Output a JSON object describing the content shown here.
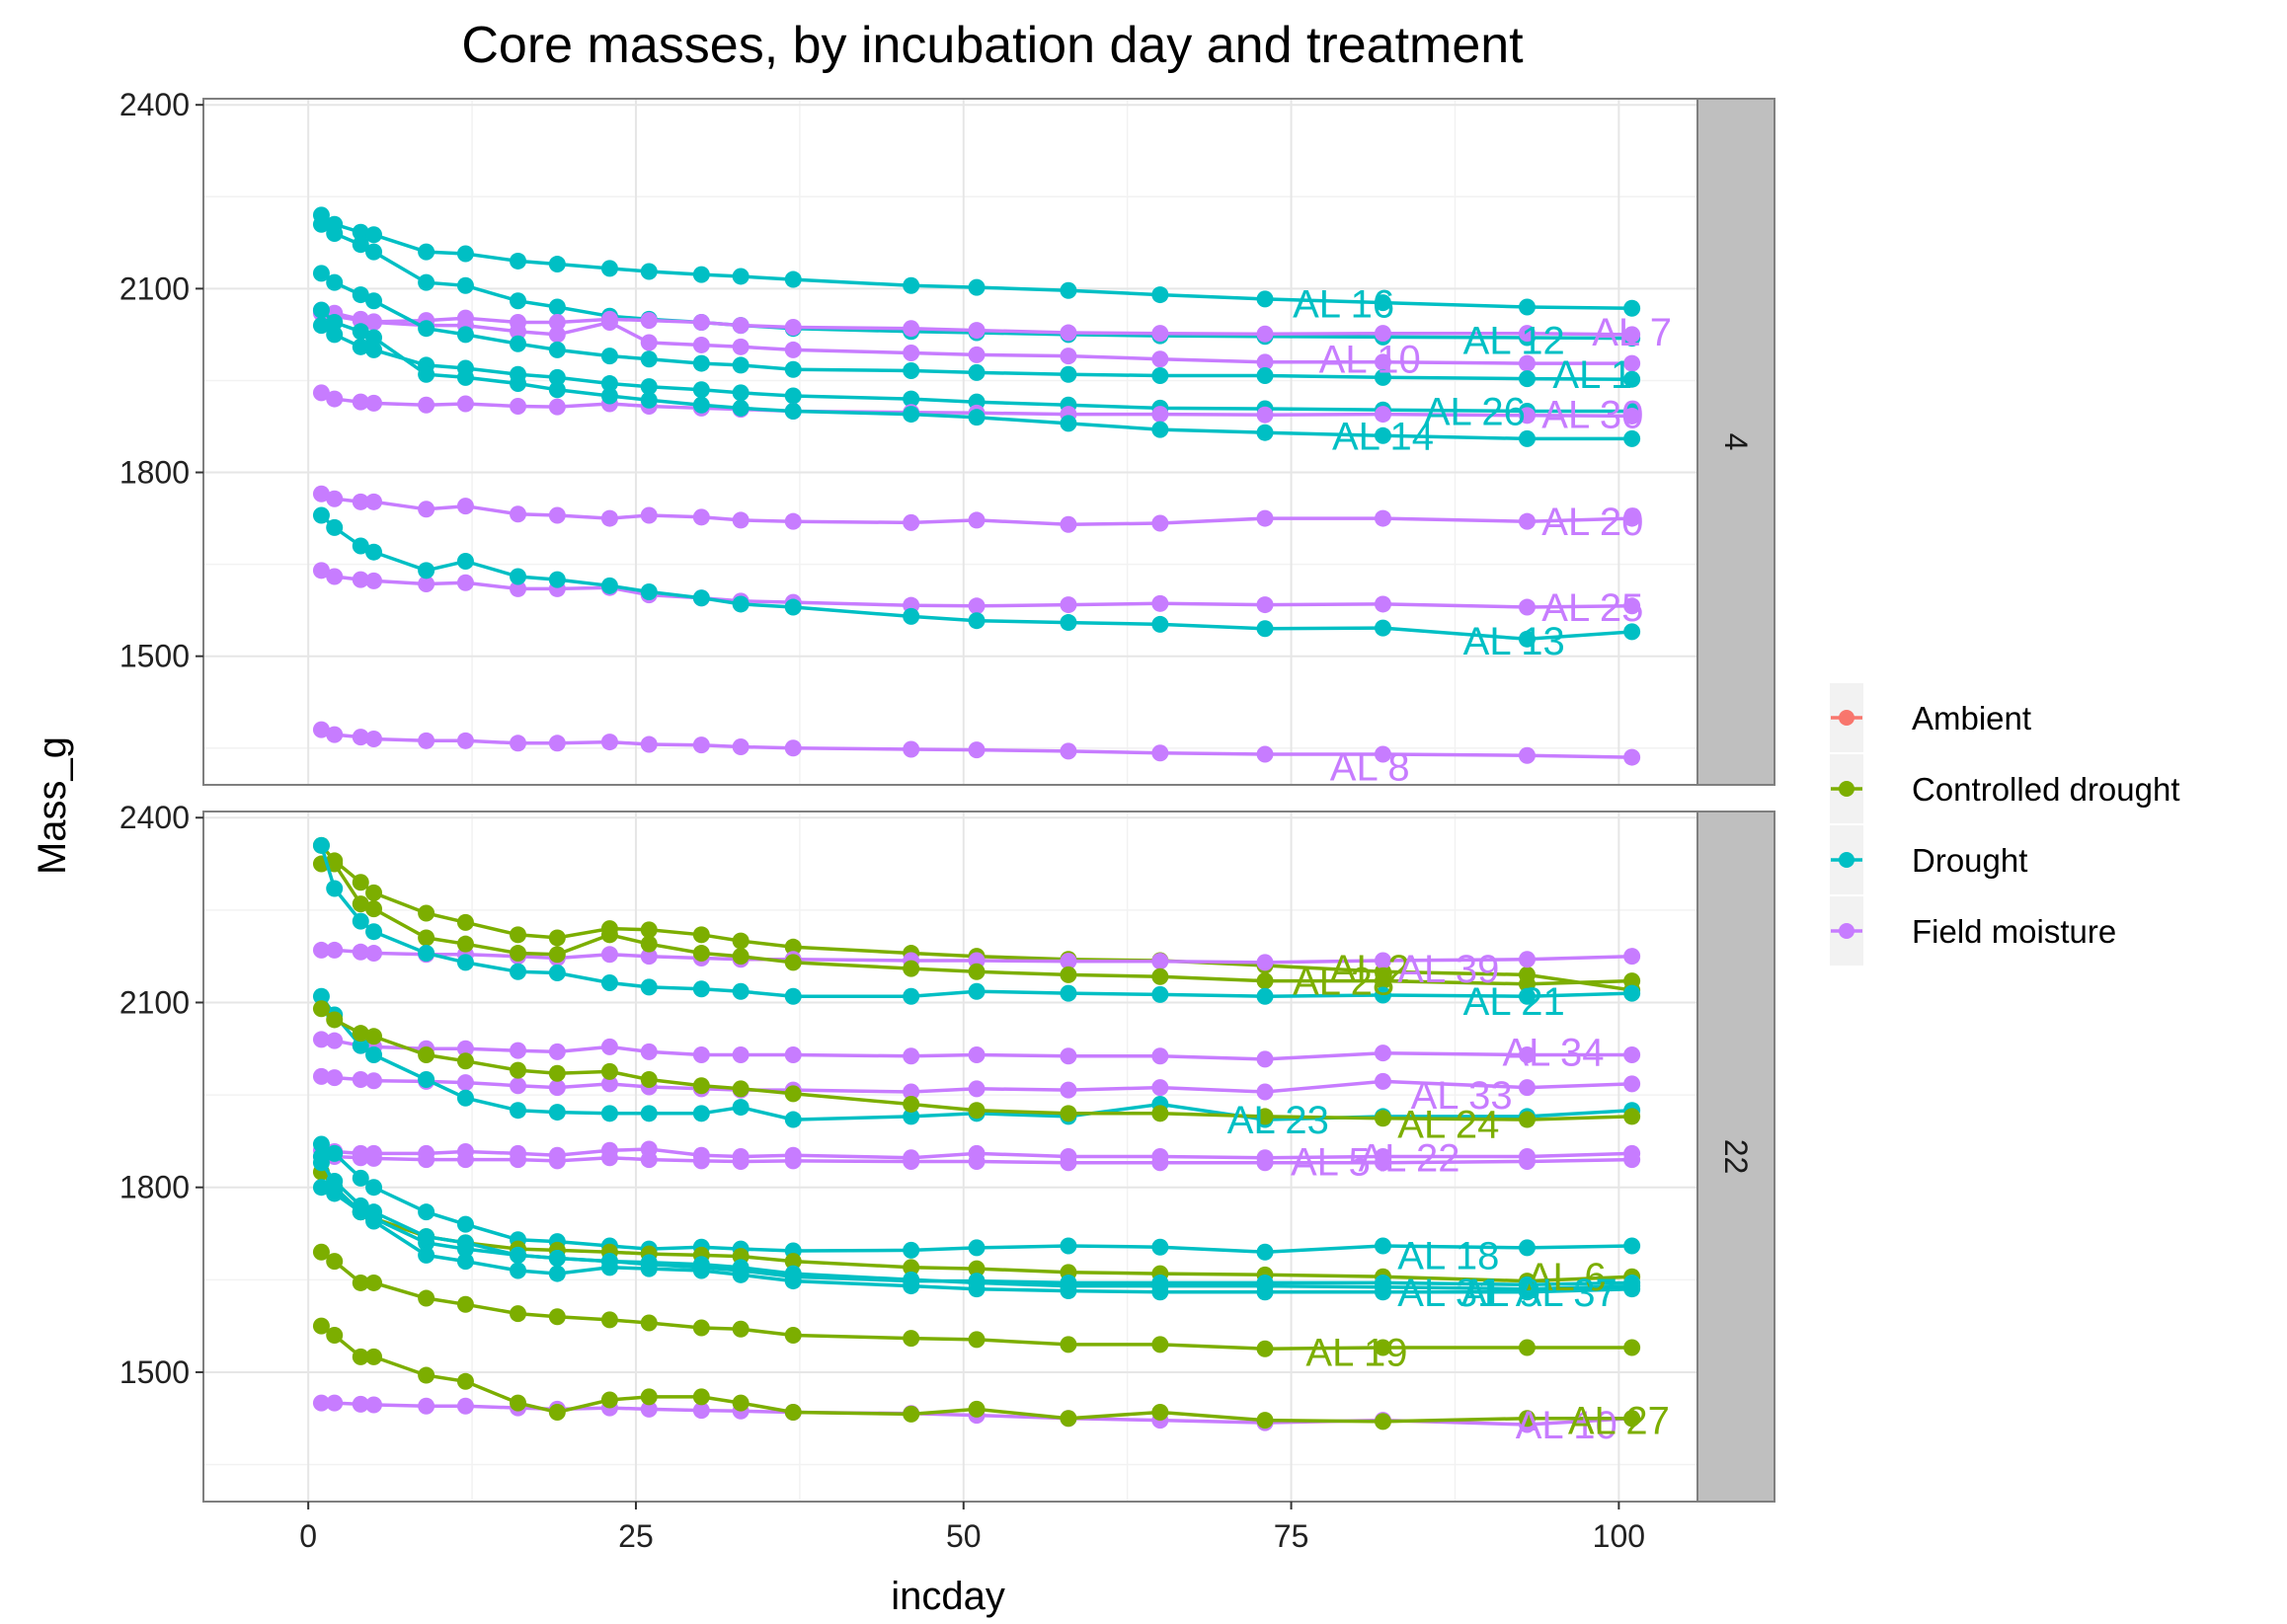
{
  "chart_data": {
    "type": "line",
    "title": "Core masses, by incubation day and treatment",
    "xlabel": "incday",
    "ylabel": "Mass_g",
    "xlim": [
      -8,
      106
    ],
    "ylim": [
      1290,
      2410
    ],
    "x_ticks": [
      0,
      25,
      50,
      75,
      100
    ],
    "y_ticks": [
      1500,
      1800,
      2100,
      2400
    ],
    "grid": true,
    "facet_strip": "right",
    "legend_position": "right",
    "colors": {
      "Ambient": "#F8766D",
      "Controlled drought": "#7CAE00",
      "Drought": "#00BFC4",
      "Field moisture": "#C77CFF"
    },
    "legend": [
      "Ambient",
      "Controlled drought",
      "Drought",
      "Field moisture"
    ],
    "x_common": [
      1,
      2,
      4,
      5,
      9,
      12,
      16,
      19,
      23,
      26,
      30,
      33,
      37,
      46,
      51,
      58,
      65,
      73,
      82,
      93,
      101
    ],
    "panels": [
      {
        "strip": "4",
        "series": [
          {
            "label": "AL 16",
            "treatment": "Drought",
            "label_at": [
              79,
              2076
            ],
            "y": [
              2220,
              2205,
              2192,
              2188,
              2160,
              2157,
              2145,
              2140,
              2133,
              2128,
              2123,
              2120,
              2115,
              2105,
              2102,
              2097,
              2090,
              2083,
              2077,
              2070,
              2068
            ]
          },
          {
            "label": "AL 12",
            "treatment": "Drought",
            "label_at": [
              92,
              2016
            ],
            "y": [
              2205,
              2190,
              2172,
              2160,
              2110,
              2105,
              2080,
              2070,
              2055,
              2050,
              2045,
              2040,
              2035,
              2030,
              2028,
              2025,
              2023,
              2022,
              2021,
              2020,
              2019
            ]
          },
          {
            "label": "AL 7",
            "treatment": "Field moisture",
            "label_at": [
              101,
              2030
            ],
            "y": [
              2060,
              2055,
              2048,
              2046,
              2048,
              2052,
              2045,
              2045,
              2050,
              2048,
              2045,
              2040,
              2037,
              2035,
              2032,
              2028,
              2027,
              2026,
              2027,
              2027,
              2025
            ]
          },
          {
            "label": "AL 10",
            "treatment": "Field moisture",
            "label_at": [
              81,
              1985
            ],
            "y": [
              2065,
              2060,
              2050,
              2045,
              2040,
              2040,
              2030,
              2025,
              2045,
              2012,
              2008,
              2005,
              2000,
              1995,
              1992,
              1990,
              1985,
              1980,
              1980,
              1978,
              1978
            ]
          },
          {
            "label": "AL 1",
            "treatment": "Drought",
            "label_at": [
              98,
              1960
            ],
            "y": [
              2125,
              2110,
              2090,
              2080,
              2035,
              2025,
              2010,
              2000,
              1990,
              1985,
              1978,
              1975,
              1968,
              1966,
              1963,
              1960,
              1958,
              1958,
              1955,
              1953,
              1952
            ]
          },
          {
            "label": "AL 26",
            "treatment": "Drought",
            "label_at": [
              89,
              1900
            ],
            "y": [
              2040,
              2025,
              2005,
              2000,
              1975,
              1970,
              1960,
              1955,
              1945,
              1940,
              1935,
              1930,
              1925,
              1920,
              1915,
              1910,
              1905,
              1904,
              1902,
              1900,
              1900
            ]
          },
          {
            "label": "AL 30",
            "treatment": "Field moisture",
            "label_at": [
              98,
              1895
            ],
            "y": [
              1930,
              1920,
              1915,
              1913,
              1910,
              1912,
              1908,
              1907,
              1912,
              1908,
              1905,
              1903,
              1900,
              1898,
              1897,
              1895,
              1895,
              1894,
              1895,
              1893,
              1892
            ]
          },
          {
            "label": "AL 14",
            "treatment": "Drought",
            "label_at": [
              82,
              1860
            ],
            "y": [
              2065,
              2045,
              2030,
              2020,
              1960,
              1955,
              1945,
              1935,
              1925,
              1918,
              1910,
              1905,
              1900,
              1895,
              1890,
              1880,
              1870,
              1865,
              1860,
              1855,
              1855
            ]
          },
          {
            "label": "AL 20",
            "treatment": "Field moisture",
            "label_at": [
              98,
              1720
            ],
            "y": [
              1765,
              1757,
              1752,
              1752,
              1740,
              1745,
              1732,
              1730,
              1725,
              1730,
              1727,
              1722,
              1720,
              1718,
              1722,
              1715,
              1717,
              1725,
              1725,
              1720,
              1725
            ]
          },
          {
            "label": "AL 25",
            "treatment": "Field moisture",
            "label_at": [
              98,
              1580
            ],
            "y": [
              1640,
              1630,
              1625,
              1623,
              1618,
              1620,
              1610,
              1610,
              1612,
              1600,
              1595,
              1590,
              1588,
              1583,
              1582,
              1584,
              1586,
              1584,
              1585,
              1580,
              1582
            ]
          },
          {
            "label": "AL 13",
            "treatment": "Drought",
            "label_at": [
              92,
              1525
            ],
            "y": [
              1730,
              1710,
              1680,
              1670,
              1640,
              1655,
              1630,
              1625,
              1615,
              1605,
              1595,
              1585,
              1580,
              1565,
              1558,
              1555,
              1552,
              1545,
              1546,
              1528,
              1540
            ]
          },
          {
            "label": "AL 8",
            "treatment": "Field moisture",
            "label_at": [
              81,
              1320
            ],
            "y": [
              1380,
              1372,
              1368,
              1365,
              1362,
              1362,
              1358,
              1358,
              1360,
              1356,
              1355,
              1352,
              1350,
              1348,
              1347,
              1345,
              1342,
              1340,
              1340,
              1338,
              1335
            ]
          }
        ]
      },
      {
        "strip": "22",
        "series": [
          {
            "label": "AL 2",
            "treatment": "Controlled drought",
            "label_at": [
              81,
              2155
            ],
            "y": [
              2355,
              2330,
              2295,
              2278,
              2245,
              2230,
              2210,
              2205,
              2220,
              2218,
              2210,
              2200,
              2190,
              2180,
              2175,
              2170,
              2168,
              2160,
              2150,
              2145,
              2120
            ]
          },
          {
            "label": "AL 39",
            "treatment": "Field moisture",
            "label_at": [
              87,
              2155
            ],
            "y": [
              2185,
              2185,
              2182,
              2180,
              2178,
              2178,
              2175,
              2172,
              2178,
              2175,
              2172,
              2170,
              2170,
              2168,
              2168,
              2167,
              2167,
              2165,
              2168,
              2170,
              2175
            ]
          },
          {
            "label": "AL 28",
            "treatment": "Controlled drought",
            "label_at": [
              79,
              2135
            ],
            "y": [
              2325,
              2325,
              2260,
              2252,
              2205,
              2195,
              2180,
              2178,
              2210,
              2195,
              2180,
              2175,
              2165,
              2155,
              2150,
              2145,
              2142,
              2135,
              2135,
              2130,
              2135
            ]
          },
          {
            "label": "AL 21",
            "treatment": "Drought",
            "label_at": [
              92,
              2102
            ],
            "y": [
              2355,
              2285,
              2232,
              2215,
              2180,
              2165,
              2150,
              2148,
              2132,
              2125,
              2122,
              2118,
              2110,
              2110,
              2118,
              2115,
              2113,
              2110,
              2112,
              2110,
              2115
            ]
          },
          {
            "label": "AL 34",
            "treatment": "Field moisture",
            "label_at": [
              95,
              2020
            ],
            "y": [
              2040,
              2038,
              2030,
              2028,
              2025,
              2025,
              2022,
              2020,
              2028,
              2020,
              2015,
              2015,
              2015,
              2013,
              2015,
              2013,
              2013,
              2008,
              2018,
              2015,
              2015
            ]
          },
          {
            "label": "AL 33",
            "treatment": "Field moisture",
            "label_at": [
              88,
              1950
            ],
            "y": [
              1980,
              1978,
              1975,
              1973,
              1972,
              1970,
              1965,
              1962,
              1968,
              1963,
              1960,
              1958,
              1958,
              1955,
              1960,
              1958,
              1962,
              1955,
              1972,
              1962,
              1968
            ]
          },
          {
            "label": "AL 23",
            "treatment": "Drought",
            "label_at": [
              74,
              1910
            ],
            "y": [
              2110,
              2080,
              2030,
              2015,
              1975,
              1945,
              1925,
              1922,
              1920,
              1920,
              1920,
              1930,
              1910,
              1915,
              1920,
              1915,
              1935,
              1910,
              1915,
              1915,
              1925
            ]
          },
          {
            "label": "AL 24",
            "treatment": "Controlled drought",
            "label_at": [
              87,
              1903
            ],
            "y": [
              2090,
              2072,
              2050,
              2045,
              2015,
              2005,
              1990,
              1985,
              1988,
              1975,
              1965,
              1960,
              1952,
              1935,
              1925,
              1920,
              1920,
              1915,
              1912,
              1910,
              1915
            ]
          },
          {
            "label": "AL 22",
            "treatment": "Field moisture",
            "label_at": [
              84,
              1848
            ],
            "y": [
              1860,
              1858,
              1855,
              1855,
              1855,
              1858,
              1855,
              1852,
              1860,
              1862,
              1852,
              1850,
              1852,
              1848,
              1855,
              1850,
              1850,
              1848,
              1850,
              1850,
              1855
            ]
          },
          {
            "label": "AL 5",
            "treatment": "Field moisture",
            "label_at": [
              78,
              1842
            ],
            "y": [
              1850,
              1850,
              1848,
              1847,
              1845,
              1845,
              1845,
              1843,
              1848,
              1845,
              1843,
              1842,
              1843,
              1842,
              1842,
              1840,
              1840,
              1840,
              1840,
              1842,
              1845
            ]
          },
          {
            "label": "AL 18",
            "treatment": "Drought",
            "label_at": [
              87,
              1690
            ],
            "y": [
              1870,
              1855,
              1815,
              1800,
              1760,
              1740,
              1715,
              1712,
              1705,
              1700,
              1703,
              1700,
              1697,
              1698,
              1702,
              1705,
              1703,
              1695,
              1705,
              1702,
              1705
            ]
          },
          {
            "label": "AL 6",
            "treatment": "Controlled drought",
            "label_at": [
              96,
              1655
            ],
            "y": [
              1825,
              1800,
              1760,
              1750,
              1720,
              1710,
              1700,
              1698,
              1695,
              1692,
              1690,
              1688,
              1680,
              1670,
              1668,
              1662,
              1660,
              1658,
              1655,
              1648,
              1655
            ]
          },
          {
            "label": "AL 31",
            "treatment": "Drought",
            "label_at": [
              87,
              1630
            ],
            "y": [
              1800,
              1790,
              1760,
              1750,
              1710,
              1700,
              1690,
              1685,
              1680,
              1678,
              1675,
              1670,
              1660,
              1650,
              1645,
              1640,
              1640,
              1640,
              1638,
              1635,
              1640
            ]
          },
          {
            "label": "AL 9",
            "treatment": "Drought",
            "label_at": [
              91,
              1630
            ],
            "y": [
              1840,
              1810,
              1770,
              1760,
              1720,
              1710,
              1690,
              1685,
              1680,
              1675,
              1670,
              1665,
              1655,
              1648,
              1648,
              1645,
              1645,
              1645,
              1645,
              1642,
              1645
            ]
          },
          {
            "label": "AL 37",
            "treatment": "Drought",
            "label_at": [
              96,
              1630
            ],
            "y": [
              1850,
              1800,
              1760,
              1745,
              1690,
              1680,
              1665,
              1660,
              1670,
              1668,
              1665,
              1658,
              1648,
              1640,
              1635,
              1632,
              1630,
              1630,
              1630,
              1630,
              1635
            ]
          },
          {
            "label": "AL 19",
            "treatment": "Controlled drought",
            "label_at": [
              80,
              1533
            ],
            "y": [
              1695,
              1680,
              1645,
              1645,
              1620,
              1610,
              1595,
              1590,
              1585,
              1580,
              1572,
              1570,
              1560,
              1555,
              1553,
              1545,
              1545,
              1538,
              1540,
              1540,
              1540
            ]
          },
          {
            "label": "AL 10",
            "treatment": "Field moisture",
            "label_at": [
              96,
              1415
            ],
            "y": [
              1450,
              1450,
              1448,
              1447,
              1445,
              1445,
              1442,
              1440,
              1442,
              1440,
              1438,
              1437,
              1435,
              1433,
              1430,
              1425,
              1422,
              1418,
              1422,
              1415,
              1425
            ]
          },
          {
            "label": "AL 27",
            "treatment": "Controlled drought",
            "label_at": [
              100,
              1422
            ],
            "y": [
              1575,
              1560,
              1525,
              1525,
              1495,
              1485,
              1450,
              1435,
              1455,
              1460,
              1460,
              1450,
              1435,
              1432,
              1440,
              1425,
              1435,
              1422,
              1420,
              1425,
              1425
            ]
          }
        ]
      }
    ]
  }
}
